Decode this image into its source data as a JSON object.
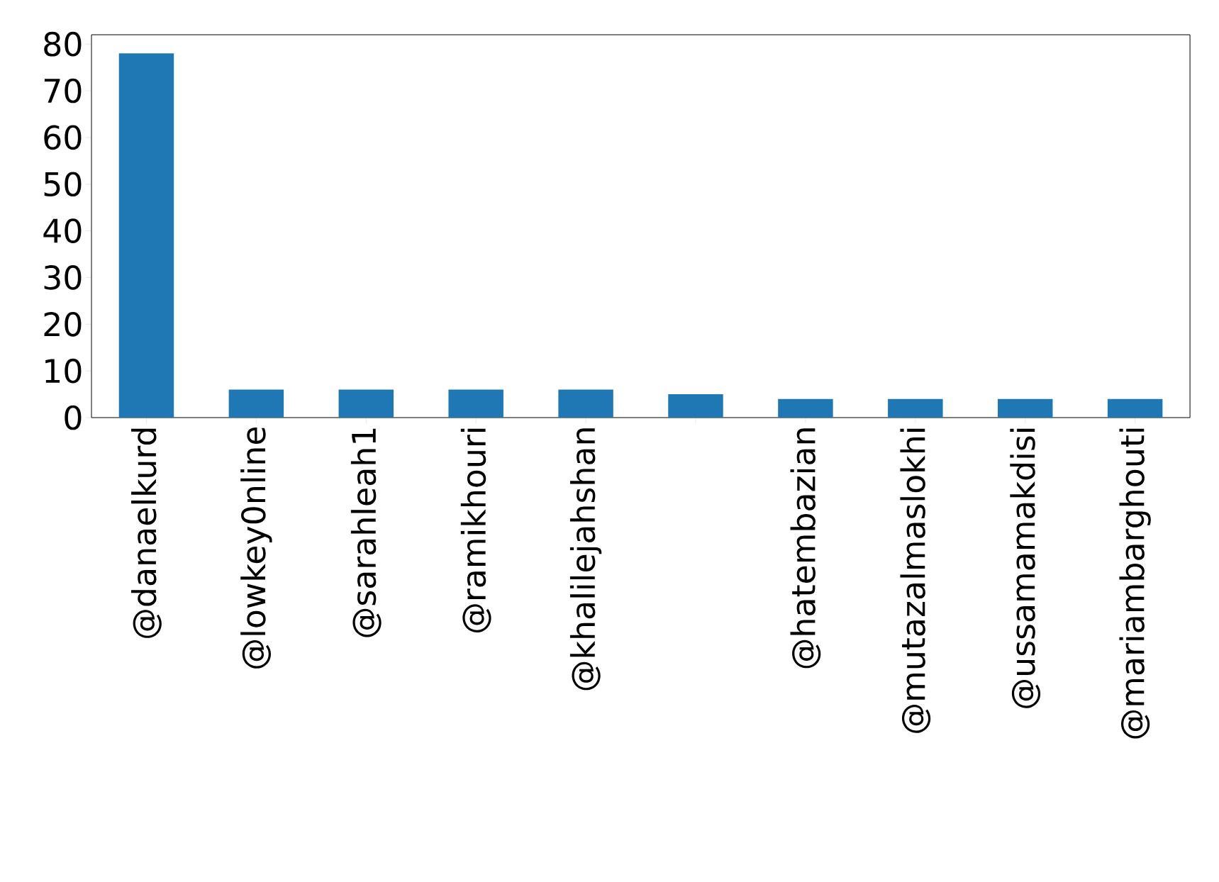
{
  "chart_data": {
    "type": "bar",
    "categories": [
      "@danaelkurd",
      "@lowkey0nline",
      "@sarahleah1",
      "@ramikhouri",
      "@khalilejahshan",
      null,
      "@hatembazian",
      "@mutazalmaslokhi",
      "@ussamamakdisi",
      "@mariambarghouti"
    ],
    "values": [
      78,
      6,
      6,
      6,
      6,
      5,
      4,
      4,
      4,
      4
    ],
    "color": "#1f77b4",
    "ylim": [
      0,
      82
    ],
    "yticks": [
      0,
      10,
      20,
      30,
      40,
      50,
      60,
      70,
      80
    ]
  }
}
